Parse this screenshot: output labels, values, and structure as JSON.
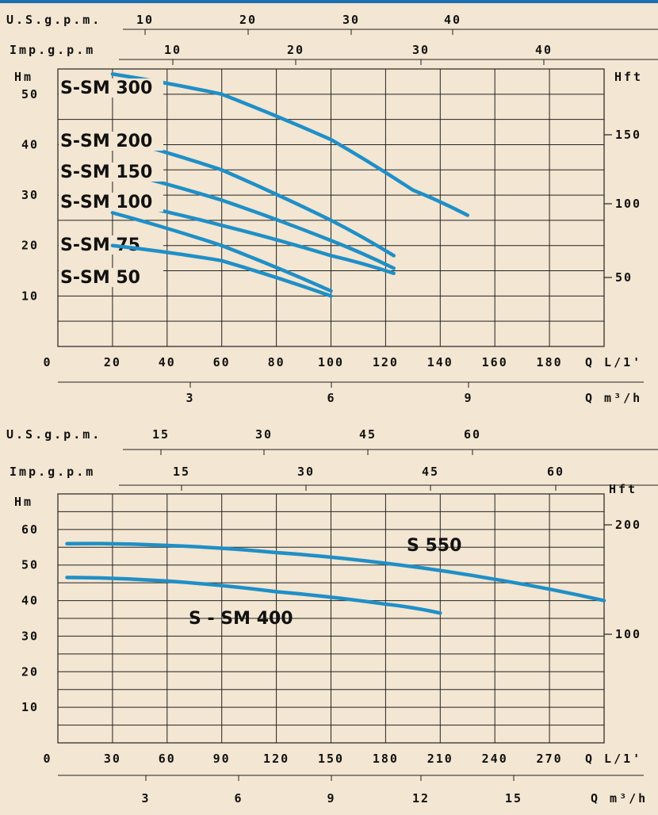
{
  "colors": {
    "curve": "#1f8fc7",
    "grid": "#222222",
    "background": "#f3e6d2",
    "topline": "#1b6fb3"
  },
  "chart_data": [
    {
      "type": "line",
      "x_axis": {
        "label": "Q L/1'",
        "ticks": [
          "0",
          "20",
          "40",
          "60",
          "80",
          "100",
          "120",
          "140",
          "160",
          "180"
        ],
        "xlim": [
          0,
          200
        ]
      },
      "y_axis_left": {
        "label": "Hm",
        "ticks": [
          "10",
          "20",
          "30",
          "40",
          "50"
        ],
        "ylim": [
          0,
          55
        ]
      },
      "y_axis_right": {
        "label": "Hft",
        "ticks": [
          "50",
          "100",
          "150"
        ]
      },
      "top_axis_usgpm": {
        "label": "U.S.g.p.m.",
        "ticks": [
          "10",
          "20",
          "30",
          "40"
        ]
      },
      "top_axis_impgpm": {
        "label": "Imp.g.p.m",
        "ticks": [
          "10",
          "20",
          "30",
          "40"
        ]
      },
      "bottom_axis_m3h": {
        "label": "Q m³/h",
        "ticks": [
          "3",
          "6",
          "9"
        ]
      },
      "grid": true,
      "series": [
        {
          "name": "S-SM 300",
          "x": [
            20,
            60,
            100,
            130,
            150
          ],
          "y": [
            54,
            50,
            41,
            31,
            26
          ]
        },
        {
          "name": "S-SM 200",
          "x": [
            20,
            60,
            100,
            123
          ],
          "y": [
            41.5,
            35,
            25,
            18
          ]
        },
        {
          "name": "S-SM 150",
          "x": [
            20,
            60,
            100,
            123
          ],
          "y": [
            35,
            29,
            21,
            15.5
          ]
        },
        {
          "name": "S-SM 100",
          "x": [
            20,
            60,
            100,
            123
          ],
          "y": [
            29,
            24,
            18,
            14.5
          ]
        },
        {
          "name": "S-SM 75",
          "x": [
            20,
            60,
            100
          ],
          "y": [
            26.5,
            20,
            11
          ]
        },
        {
          "name": "S-SM 50",
          "x": [
            20,
            60,
            100
          ],
          "y": [
            20,
            17,
            10
          ]
        }
      ]
    },
    {
      "type": "line",
      "x_axis": {
        "label": "Q L/1'",
        "ticks": [
          "0",
          "30",
          "60",
          "90",
          "120",
          "150",
          "180",
          "210",
          "240",
          "270"
        ],
        "xlim": [
          0,
          300
        ]
      },
      "y_axis_left": {
        "label": "Hm",
        "ticks": [
          "10",
          "20",
          "30",
          "40",
          "50",
          "60"
        ],
        "ylim": [
          0,
          70
        ]
      },
      "y_axis_right": {
        "label": "Hft",
        "ticks": [
          "100",
          "200"
        ]
      },
      "top_axis_usgpm": {
        "label": "U.S.g.p.m.",
        "ticks": [
          "15",
          "30",
          "45",
          "60"
        ]
      },
      "top_axis_impgpm": {
        "label": "Imp.g.p.m",
        "ticks": [
          "15",
          "30",
          "45",
          "60"
        ]
      },
      "bottom_axis_m3h": {
        "label": "Q m³/h",
        "ticks": [
          "3",
          "6",
          "9",
          "12",
          "15"
        ]
      },
      "grid": true,
      "series": [
        {
          "name": "S 550",
          "x": [
            5,
            60,
            120,
            180,
            240,
            300
          ],
          "y": [
            56,
            55.5,
            53.5,
            50.5,
            46,
            40
          ]
        },
        {
          "name": "S - SM 400",
          "x": [
            5,
            60,
            120,
            180,
            210
          ],
          "y": [
            46.5,
            45.5,
            42.5,
            39,
            36.5
          ]
        }
      ]
    }
  ]
}
